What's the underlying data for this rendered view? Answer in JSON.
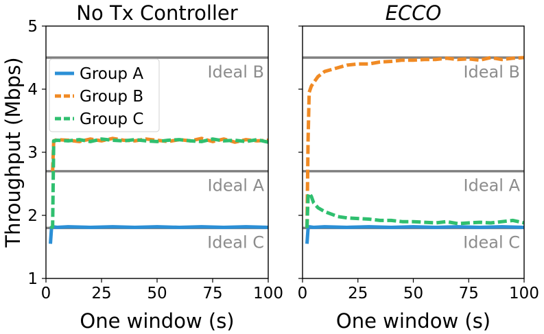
{
  "chart_data": [
    {
      "type": "line",
      "title": "No Tx Controller",
      "title_style": "normal",
      "xlabel": "One window (s)",
      "ylabel": "Throughput (Mbps)",
      "xlim": [
        0,
        100
      ],
      "ylim": [
        1,
        5
      ],
      "xticks": [
        "0",
        "25",
        "50",
        "75",
        "100"
      ],
      "yticks": [
        "1",
        "2",
        "3",
        "4",
        "5"
      ],
      "show_ytick_labels": true,
      "ideal_lines": [
        {
          "label": "Ideal B",
          "y": 4.5
        },
        {
          "label": "Ideal A",
          "y": 2.7
        },
        {
          "label": "Ideal C",
          "y": 1.8
        }
      ],
      "legend": {
        "position": "upper-left"
      },
      "series": [
        {
          "name": "Group A",
          "color": "#2b8fd6",
          "dash": "solid",
          "x": [
            2,
            2.5,
            3,
            5,
            10,
            20,
            30,
            40,
            50,
            60,
            70,
            80,
            90,
            100
          ],
          "y": [
            1.55,
            1.8,
            1.82,
            1.81,
            1.82,
            1.81,
            1.82,
            1.81,
            1.82,
            1.81,
            1.82,
            1.81,
            1.82,
            1.81
          ]
        },
        {
          "name": "Group B",
          "color": "#f08a24",
          "dash": "dashed",
          "x": [
            3,
            3.5,
            5,
            10,
            15,
            20,
            25,
            30,
            35,
            40,
            45,
            50,
            55,
            60,
            65,
            70,
            75,
            80,
            85,
            90,
            95,
            100
          ],
          "y": [
            2.7,
            3.18,
            3.2,
            3.19,
            3.17,
            3.21,
            3.18,
            3.22,
            3.19,
            3.18,
            3.21,
            3.19,
            3.17,
            3.2,
            3.18,
            3.22,
            3.17,
            3.21,
            3.16,
            3.2,
            3.18,
            3.19
          ]
        },
        {
          "name": "Group C",
          "color": "#2fbf6f",
          "dash": "dashed",
          "x": [
            2,
            3,
            3.5,
            5,
            10,
            15,
            20,
            25,
            30,
            35,
            40,
            45,
            50,
            55,
            60,
            65,
            70,
            75,
            80,
            85,
            90,
            95,
            100
          ],
          "y": [
            1.8,
            1.82,
            3.18,
            3.19,
            3.18,
            3.2,
            3.17,
            3.21,
            3.19,
            3.18,
            3.2,
            3.18,
            3.17,
            3.19,
            3.2,
            3.18,
            3.17,
            3.21,
            3.18,
            3.19,
            3.17,
            3.2,
            3.16
          ]
        }
      ]
    },
    {
      "type": "line",
      "title": "ECCO",
      "title_style": "italic",
      "xlabel": "One window (s)",
      "ylabel": "",
      "xlim": [
        0,
        100
      ],
      "ylim": [
        1,
        5
      ],
      "xticks": [
        "0",
        "25",
        "50",
        "75",
        "100"
      ],
      "yticks": [
        "1",
        "2",
        "3",
        "4",
        "5"
      ],
      "show_ytick_labels": false,
      "ideal_lines": [
        {
          "label": "Ideal B",
          "y": 4.5
        },
        {
          "label": "Ideal A",
          "y": 2.7
        },
        {
          "label": "Ideal C",
          "y": 1.8
        }
      ],
      "series": [
        {
          "name": "Group A",
          "color": "#2b8fd6",
          "dash": "solid",
          "x": [
            2,
            2.5,
            3,
            5,
            10,
            20,
            30,
            40,
            50,
            60,
            70,
            80,
            90,
            100
          ],
          "y": [
            1.55,
            1.8,
            1.82,
            1.81,
            1.82,
            1.81,
            1.82,
            1.81,
            1.82,
            1.81,
            1.82,
            1.81,
            1.82,
            1.81
          ]
        },
        {
          "name": "Group B",
          "color": "#f08a24",
          "dash": "dashed",
          "x": [
            2,
            2.5,
            3,
            4,
            5,
            7,
            10,
            15,
            20,
            25,
            30,
            35,
            40,
            45,
            50,
            55,
            60,
            65,
            70,
            75,
            80,
            85,
            90,
            95,
            100
          ],
          "y": [
            1.8,
            3.2,
            3.95,
            4.05,
            4.1,
            4.2,
            4.28,
            4.33,
            4.38,
            4.4,
            4.4,
            4.43,
            4.44,
            4.46,
            4.46,
            4.47,
            4.47,
            4.49,
            4.47,
            4.48,
            4.46,
            4.5,
            4.47,
            4.49,
            4.5
          ]
        },
        {
          "name": "Group C",
          "color": "#2fbf6f",
          "dash": "dashed",
          "x": [
            2,
            2.5,
            3,
            4,
            5,
            7,
            10,
            13,
            16,
            20,
            25,
            30,
            35,
            40,
            45,
            50,
            55,
            60,
            65,
            70,
            75,
            80,
            85,
            90,
            95,
            100
          ],
          "y": [
            1.8,
            2.3,
            2.35,
            2.3,
            2.2,
            2.12,
            2.06,
            2.02,
            1.98,
            1.96,
            1.95,
            1.94,
            1.92,
            1.92,
            1.9,
            1.9,
            1.89,
            1.88,
            1.9,
            1.87,
            1.88,
            1.89,
            1.88,
            1.9,
            1.92,
            1.88
          ]
        }
      ]
    }
  ]
}
